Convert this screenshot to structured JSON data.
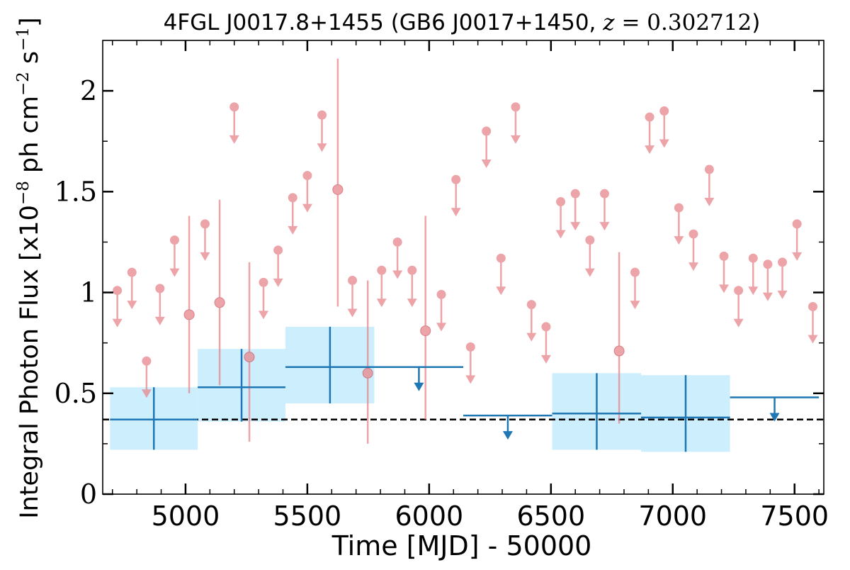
{
  "chart_data": {
    "type": "scatter",
    "title": {
      "prefix": "4FGL J0017.8+1455 (GB6 J0017+1450, ",
      "z_symbol": "z",
      "z_value": " = 0.302712",
      "suffix": ")"
    },
    "xlabel": "Time [MJD] - 50000",
    "ylabel": {
      "main": "Integral Photon Flux [x10",
      "exp1": "−8",
      "mid": " ph cm",
      "exp2": "−2",
      "mid2": " s",
      "exp3": "−1",
      "end": "]"
    },
    "xlim": [
      4660,
      7620
    ],
    "ylim": [
      0,
      2.25
    ],
    "x_ticks": [
      5000,
      5500,
      6000,
      6500,
      7000,
      7500
    ],
    "x_tick_labels": [
      "5000",
      "5500",
      "6000",
      "6500",
      "7000",
      "7500"
    ],
    "y_ticks": [
      0,
      0.5,
      1,
      1.5,
      2
    ],
    "y_tick_labels": [
      "0",
      "0.5",
      "1",
      "1.5",
      "2"
    ],
    "grid": false,
    "baseline_flux": 0.37,
    "colors": {
      "fine_bins": "#e8868c",
      "coarse_bins": "#1f77b4",
      "coarse_band": "#cdeefc",
      "baseline": "#000000"
    },
    "fine_bin_detections": [
      {
        "x": 5015,
        "y": 0.89,
        "y_lo": 0.5,
        "y_hi": 1.38
      },
      {
        "x": 5140,
        "y": 0.95,
        "y_lo": 0.54,
        "y_hi": 1.46
      },
      {
        "x": 5262,
        "y": 0.68,
        "y_lo": 0.26,
        "y_hi": 1.15
      },
      {
        "x": 5625,
        "y": 1.51,
        "y_lo": 0.93,
        "y_hi": 2.16
      },
      {
        "x": 5748,
        "y": 0.6,
        "y_lo": 0.25,
        "y_hi": 1.06
      },
      {
        "x": 5985,
        "y": 0.81,
        "y_lo": 0.37,
        "y_hi": 1.38
      },
      {
        "x": 6780,
        "y": 0.71,
        "y_lo": 0.35,
        "y_hi": 1.2
      }
    ],
    "fine_bin_upper_limits": [
      {
        "x": 4720,
        "y": 1.01
      },
      {
        "x": 4780,
        "y": 1.1
      },
      {
        "x": 4840,
        "y": 0.66
      },
      {
        "x": 4895,
        "y": 1.02
      },
      {
        "x": 4955,
        "y": 1.26
      },
      {
        "x": 5080,
        "y": 1.34
      },
      {
        "x": 5200,
        "y": 1.92
      },
      {
        "x": 5320,
        "y": 1.05
      },
      {
        "x": 5380,
        "y": 1.21
      },
      {
        "x": 5440,
        "y": 1.47
      },
      {
        "x": 5500,
        "y": 1.58
      },
      {
        "x": 5560,
        "y": 1.88
      },
      {
        "x": 5685,
        "y": 1.06
      },
      {
        "x": 5805,
        "y": 1.11
      },
      {
        "x": 5870,
        "y": 1.25
      },
      {
        "x": 5930,
        "y": 1.11
      },
      {
        "x": 6050,
        "y": 0.99
      },
      {
        "x": 6110,
        "y": 1.56
      },
      {
        "x": 6170,
        "y": 0.73
      },
      {
        "x": 6235,
        "y": 1.8
      },
      {
        "x": 6295,
        "y": 1.17
      },
      {
        "x": 6355,
        "y": 1.92
      },
      {
        "x": 6420,
        "y": 0.94
      },
      {
        "x": 6480,
        "y": 0.83
      },
      {
        "x": 6540,
        "y": 1.45
      },
      {
        "x": 6600,
        "y": 1.49
      },
      {
        "x": 6660,
        "y": 1.26
      },
      {
        "x": 6720,
        "y": 1.49
      },
      {
        "x": 6845,
        "y": 1.1
      },
      {
        "x": 6905,
        "y": 1.87
      },
      {
        "x": 6965,
        "y": 1.9
      },
      {
        "x": 7025,
        "y": 1.42
      },
      {
        "x": 7085,
        "y": 1.29
      },
      {
        "x": 7150,
        "y": 1.61
      },
      {
        "x": 7210,
        "y": 1.18
      },
      {
        "x": 7270,
        "y": 1.01
      },
      {
        "x": 7330,
        "y": 1.17
      },
      {
        "x": 7390,
        "y": 1.14
      },
      {
        "x": 7450,
        "y": 1.15
      },
      {
        "x": 7510,
        "y": 1.34
      },
      {
        "x": 7575,
        "y": 0.93
      }
    ],
    "coarse_bin_detections": [
      {
        "x_lo": 4690,
        "x_hi": 5050,
        "x": 4870,
        "y": 0.37,
        "y_lo": 0.22,
        "y_hi": 0.53
      },
      {
        "x_lo": 5050,
        "x_hi": 5410,
        "x": 5230,
        "y": 0.53,
        "y_lo": 0.36,
        "y_hi": 0.72
      },
      {
        "x_lo": 5410,
        "x_hi": 5775,
        "x": 5593,
        "y": 0.63,
        "y_lo": 0.45,
        "y_hi": 0.83
      },
      {
        "x_lo": 6505,
        "x_hi": 6870,
        "x": 6688,
        "y": 0.4,
        "y_lo": 0.22,
        "y_hi": 0.6
      },
      {
        "x_lo": 6870,
        "x_hi": 7235,
        "x": 7053,
        "y": 0.38,
        "y_lo": 0.21,
        "y_hi": 0.59
      }
    ],
    "coarse_bin_upper_limits": [
      {
        "x_lo": 5775,
        "x_hi": 6140,
        "x": 5958,
        "y": 0.63
      },
      {
        "x_lo": 6140,
        "x_hi": 6505,
        "x": 6323,
        "y": 0.39
      },
      {
        "x_lo": 7235,
        "x_hi": 7600,
        "x": 7418,
        "y": 0.48
      }
    ]
  }
}
